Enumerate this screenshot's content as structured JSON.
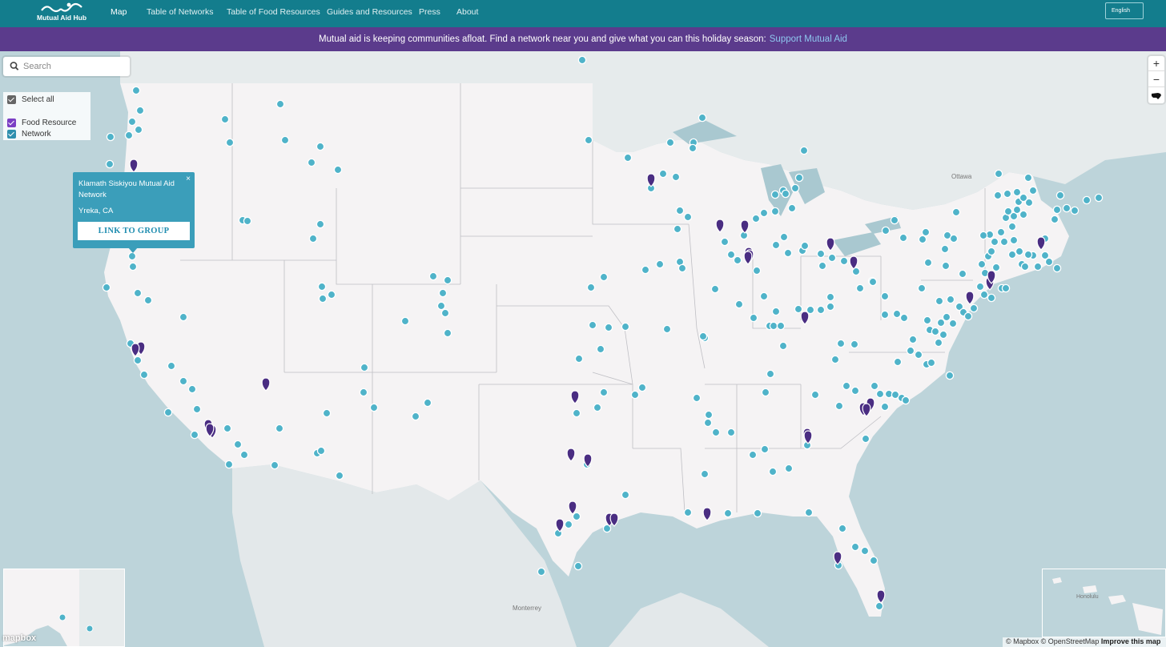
{
  "nav": {
    "logo_text": "Mutual Aid Hub",
    "links": [
      "Map",
      "Table of Networks",
      "Table of Food Resources",
      "Guides and Resources",
      "Press",
      "About"
    ],
    "language": "English"
  },
  "banner": {
    "text": "Mutual aid is keeping communities afloat. Find a network near you and give what you can this holiday season:",
    "link": "Support Mutual Aid"
  },
  "search": {
    "placeholder": "Search"
  },
  "legend": {
    "select_all": "Select all",
    "food": "Food Resource",
    "network": "Network"
  },
  "popup": {
    "title": "Klamath Siskiyou Mutual Aid Network",
    "location": "Yreka, CA",
    "button": "LINK TO GROUP",
    "close": "×"
  },
  "map_labels": {
    "ottawa": "Ottawa",
    "monterrey": "Monterrey",
    "honolulu": "Honolulu"
  },
  "controls": {
    "zoom_in": "+",
    "zoom_out": "−"
  },
  "attribution": {
    "text": "© Mapbox © OpenStreetMap",
    "improve": "Improve this map"
  },
  "mapbox_logo": "mapbox",
  "colors": {
    "nav": "#137d8d",
    "banner": "#5b3b8c",
    "network_marker": "#4fb3c9",
    "food_marker": "#4a2d82",
    "land": "#f5f3f4",
    "water": "#bdd4da"
  }
}
